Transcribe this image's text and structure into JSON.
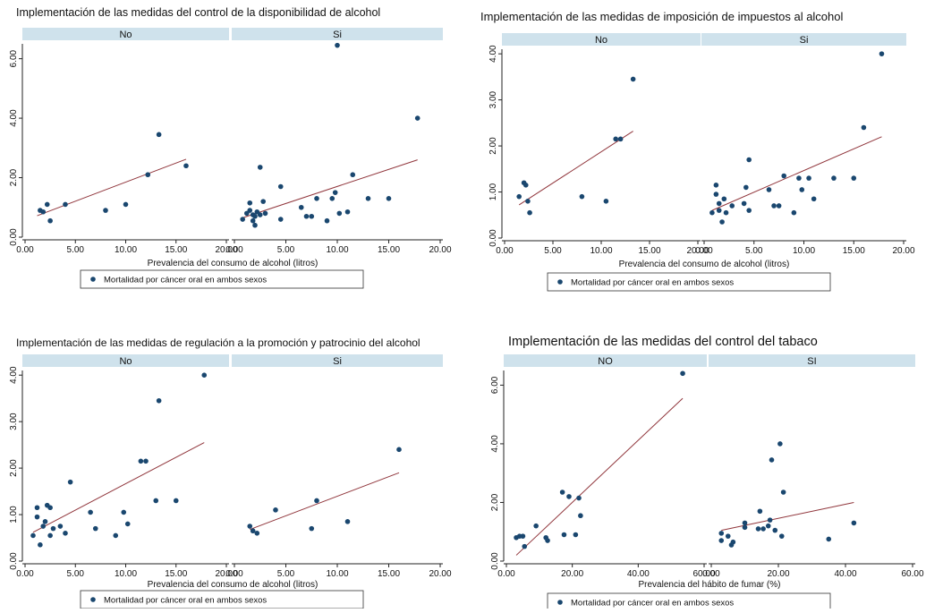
{
  "colors": {
    "strip": "#cfe2ec",
    "marker": "#1a476f",
    "fit_line": "#90353b",
    "axis": "#222222",
    "text": "#111111"
  },
  "chart_data": [
    {
      "type": "scatter",
      "title": "Implementación de las medidas del  control de la disponibilidad de alcohol",
      "xlabel": "Prevalencia del consumo de alcohol (litros)",
      "ylabel": "",
      "legend": "Mortalidad por cáncer oral en ambos sexos",
      "ylim": [
        0,
        6.5
      ],
      "yticks": [
        0,
        2,
        4,
        6
      ],
      "ytick_labels": [
        "0.00",
        "2.00",
        "4.00",
        "6.00"
      ],
      "xlim": [
        0,
        20
      ],
      "xticks": [
        0,
        5,
        10,
        15,
        20
      ],
      "xtick_labels": [
        "0.00",
        "5.00",
        "10.00",
        "15.00",
        "20.00"
      ],
      "panels": [
        {
          "label": "No",
          "points": [
            [
              1.5,
              0.9
            ],
            [
              1.8,
              0.85
            ],
            [
              2.2,
              1.1
            ],
            [
              2.5,
              0.55
            ],
            [
              4,
              1.1
            ],
            [
              8,
              0.9
            ],
            [
              10,
              1.1
            ],
            [
              12.2,
              2.1
            ],
            [
              13.3,
              3.45
            ],
            [
              16,
              2.4
            ]
          ],
          "fit": [
            [
              1.2,
              0.72
            ],
            [
              16,
              2.62
            ]
          ]
        },
        {
          "label": "Si",
          "points": [
            [
              0.8,
              0.6
            ],
            [
              1.2,
              0.8
            ],
            [
              1.5,
              0.9
            ],
            [
              1.5,
              1.15
            ],
            [
              1.8,
              0.55
            ],
            [
              1.8,
              0.75
            ],
            [
              2,
              0.7
            ],
            [
              2,
              0.4
            ],
            [
              2.2,
              0.85
            ],
            [
              2.5,
              2.35
            ],
            [
              2.5,
              0.75
            ],
            [
              2.8,
              1.2
            ],
            [
              3,
              0.8
            ],
            [
              4.5,
              0.6
            ],
            [
              4.5,
              1.7
            ],
            [
              6.5,
              1.0
            ],
            [
              7,
              0.7
            ],
            [
              7.5,
              0.7
            ],
            [
              8,
              1.3
            ],
            [
              9,
              0.55
            ],
            [
              9.5,
              1.3
            ],
            [
              9.8,
              1.5
            ],
            [
              10,
              6.45
            ],
            [
              10.2,
              0.8
            ],
            [
              11,
              0.85
            ],
            [
              11.5,
              2.1
            ],
            [
              13,
              1.3
            ],
            [
              15,
              1.3
            ],
            [
              17.8,
              4.0
            ]
          ],
          "fit": [
            [
              0.8,
              0.65
            ],
            [
              17.8,
              2.6
            ]
          ]
        }
      ]
    },
    {
      "type": "scatter",
      "title": "Implementación de las medidas de imposición de impuestos al alcohol",
      "xlabel": "Prevalencia del consumo de alcohol (litros)",
      "ylabel": "",
      "legend": "Mortalidad por cáncer oral en ambos sexos",
      "ylim": [
        0,
        4.1
      ],
      "yticks": [
        0,
        1,
        2,
        3,
        4
      ],
      "ytick_labels": [
        "0.00",
        "1.00",
        "2.00",
        "3.00",
        "4.00"
      ],
      "xlim": [
        0,
        20
      ],
      "xticks": [
        0,
        5,
        10,
        15,
        20
      ],
      "xtick_labels": [
        "0.00",
        "5.00",
        "10.00",
        "15.00",
        "20.00"
      ],
      "panels": [
        {
          "label": "No",
          "points": [
            [
              1.5,
              0.9
            ],
            [
              2,
              1.2
            ],
            [
              2.2,
              1.15
            ],
            [
              2.4,
              0.8
            ],
            [
              2.6,
              0.55
            ],
            [
              8,
              0.9
            ],
            [
              10.5,
              0.8
            ],
            [
              11.5,
              2.15
            ],
            [
              12,
              2.15
            ],
            [
              13.3,
              3.45
            ]
          ],
          "fit": [
            [
              1.5,
              0.72
            ],
            [
              13.3,
              2.32
            ]
          ]
        },
        {
          "label": "Si",
          "points": [
            [
              0.8,
              0.55
            ],
            [
              1.2,
              0.95
            ],
            [
              1.2,
              1.15
            ],
            [
              1.5,
              0.75
            ],
            [
              1.5,
              0.6
            ],
            [
              1.8,
              0.35
            ],
            [
              2,
              0.85
            ],
            [
              2.2,
              0.55
            ],
            [
              2.8,
              0.7
            ],
            [
              4,
              0.75
            ],
            [
              4.2,
              1.1
            ],
            [
              4.5,
              0.6
            ],
            [
              4.5,
              1.7
            ],
            [
              6.5,
              1.05
            ],
            [
              7,
              0.7
            ],
            [
              7.5,
              0.7
            ],
            [
              8,
              1.35
            ],
            [
              9,
              0.55
            ],
            [
              9.5,
              1.3
            ],
            [
              9.8,
              1.05
            ],
            [
              10.5,
              1.3
            ],
            [
              11,
              0.85
            ],
            [
              13,
              1.3
            ],
            [
              15,
              1.3
            ],
            [
              16,
              2.4
            ],
            [
              17.8,
              4.0
            ]
          ],
          "fit": [
            [
              0.8,
              0.6
            ],
            [
              17.8,
              2.2
            ]
          ]
        }
      ]
    },
    {
      "type": "scatter",
      "title": "Implementación de las medidas de regulación a la promoción y patrocinio del alcohol",
      "xlabel": "Prevalencia del consumo de alcohol (litros)",
      "ylabel": "",
      "legend": "Mortalidad por cáncer oral en ambos sexos",
      "ylim": [
        0,
        4.1
      ],
      "yticks": [
        0,
        1,
        2,
        3,
        4
      ],
      "ytick_labels": [
        "0.00",
        "1.00",
        "2.00",
        "3.00",
        "4.00"
      ],
      "xlim": [
        0,
        20
      ],
      "xticks": [
        0,
        5,
        10,
        15,
        20
      ],
      "xtick_labels": [
        "0.00",
        "5.00",
        "10.00",
        "15.00",
        "20.00"
      ],
      "panels": [
        {
          "label": "No",
          "points": [
            [
              0.8,
              0.55
            ],
            [
              1.2,
              0.95
            ],
            [
              1.2,
              1.15
            ],
            [
              1.5,
              0.35
            ],
            [
              1.8,
              0.75
            ],
            [
              2,
              0.85
            ],
            [
              2.2,
              1.2
            ],
            [
              2.5,
              1.15
            ],
            [
              2.5,
              0.55
            ],
            [
              2.8,
              0.7
            ],
            [
              3.5,
              0.75
            ],
            [
              4,
              0.6
            ],
            [
              4.5,
              1.7
            ],
            [
              6.5,
              1.05
            ],
            [
              7,
              0.7
            ],
            [
              9,
              0.55
            ],
            [
              9.8,
              1.05
            ],
            [
              10.2,
              0.8
            ],
            [
              11.5,
              2.15
            ],
            [
              12,
              2.15
            ],
            [
              13,
              1.3
            ],
            [
              13.3,
              3.45
            ],
            [
              15,
              1.3
            ],
            [
              17.8,
              4.0
            ]
          ],
          "fit": [
            [
              0.8,
              0.62
            ],
            [
              17.8,
              2.55
            ]
          ]
        },
        {
          "label": "Si",
          "points": [
            [
              1.5,
              0.75
            ],
            [
              1.8,
              0.65
            ],
            [
              2.2,
              0.6
            ],
            [
              4,
              1.1
            ],
            [
              7.5,
              0.7
            ],
            [
              8,
              1.3
            ],
            [
              11,
              0.85
            ],
            [
              16,
              2.4
            ]
          ],
          "fit": [
            [
              1.5,
              0.68
            ],
            [
              16,
              1.9
            ]
          ]
        }
      ]
    },
    {
      "type": "scatter",
      "title": "Implementación de las medidas del  control del tabaco",
      "xlabel": "Prevalencia del hábito de fumar (%)",
      "ylabel": "",
      "legend": "Mortalidad por cáncer oral en ambos sexos",
      "ylim": [
        0,
        6.5
      ],
      "yticks": [
        0,
        2,
        4,
        6
      ],
      "ytick_labels": [
        "0.00",
        "2.00",
        "4.00",
        "6.00"
      ],
      "xlim": [
        0,
        60
      ],
      "xticks": [
        0,
        20,
        40,
        60
      ],
      "xtick_labels": [
        "0.00",
        "20.00",
        "40.00",
        "60.00"
      ],
      "panels": [
        {
          "label": "NO",
          "points": [
            [
              3,
              0.8
            ],
            [
              4,
              0.85
            ],
            [
              5,
              0.85
            ],
            [
              5.5,
              0.5
            ],
            [
              9,
              1.2
            ],
            [
              12,
              0.8
            ],
            [
              12.5,
              0.7
            ],
            [
              17,
              2.35
            ],
            [
              17.5,
              0.9
            ],
            [
              19,
              2.2
            ],
            [
              21,
              0.9
            ],
            [
              22,
              2.15
            ],
            [
              22.5,
              1.55
            ],
            [
              53.5,
              6.4
            ]
          ],
          "fit": [
            [
              3,
              0.2
            ],
            [
              53.5,
              5.55
            ]
          ]
        },
        {
          "label": "SI",
          "points": [
            [
              3,
              0.95
            ],
            [
              3,
              0.7
            ],
            [
              5,
              0.85
            ],
            [
              6,
              0.55
            ],
            [
              6.5,
              0.65
            ],
            [
              10,
              1.15
            ],
            [
              10,
              1.3
            ],
            [
              14,
              1.1
            ],
            [
              14.5,
              1.7
            ],
            [
              15.5,
              1.1
            ],
            [
              17,
              1.2
            ],
            [
              17.5,
              1.4
            ],
            [
              18,
              3.45
            ],
            [
              19,
              1.05
            ],
            [
              20.5,
              4.0
            ],
            [
              21,
              0.85
            ],
            [
              21.5,
              2.35
            ],
            [
              35,
              0.75
            ],
            [
              42.5,
              1.3
            ]
          ],
          "fit": [
            [
              3,
              1.05
            ],
            [
              42.5,
              2.0
            ]
          ]
        }
      ]
    }
  ]
}
